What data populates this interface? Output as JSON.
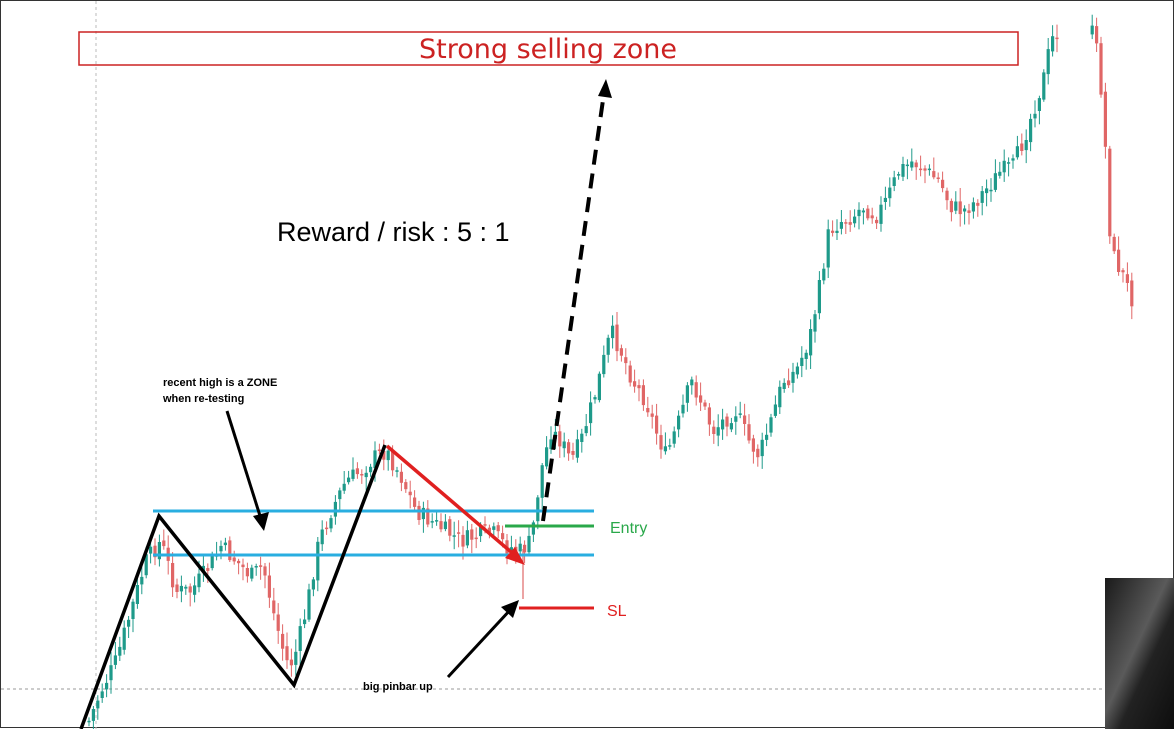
{
  "chart_data": {
    "type": "candlestick",
    "title": "",
    "xlabel": "",
    "ylabel": "",
    "grid": false,
    "legend": "none",
    "colors": {
      "bullish": "#1e9a8a",
      "bearish": "#e06666",
      "zone_line": "#29aee0",
      "entry": "#2aa84a",
      "stop_loss": "#e02020",
      "selling_zone": "#cc2222",
      "annotation": "#000000"
    },
    "annotations": {
      "selling_zone_label": "Strong selling zone",
      "reward_risk": "Reward / risk : 5 : 1",
      "zone_note_line1": "recent high is a ZONE",
      "zone_note_line2": "when re-testing",
      "entry_label": "Entry",
      "sl_label": "SL",
      "pinbar_note": "big pinbar up"
    }
  }
}
